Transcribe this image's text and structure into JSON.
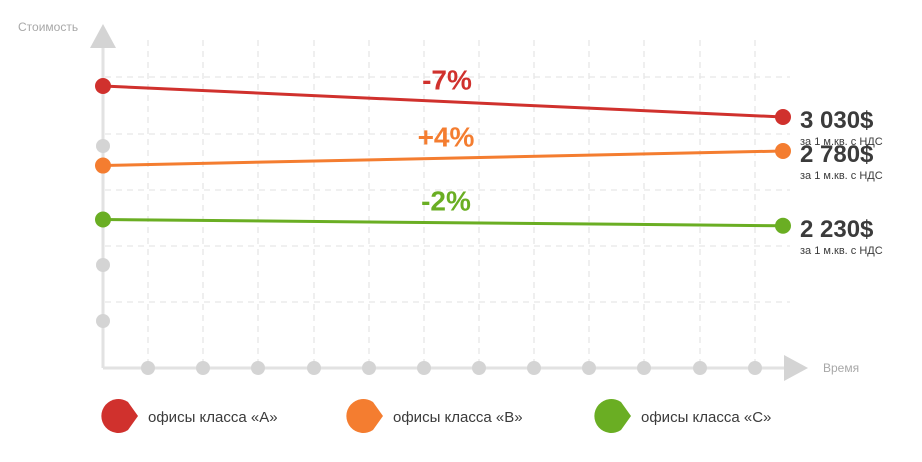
{
  "chart_data": {
    "type": "line",
    "ylabel": "Стоимость",
    "xlabel": "Время",
    "grid": true,
    "legend_position": "bottom",
    "series": [
      {
        "name": "офисы класса «А»",
        "color": "#d0312d",
        "start": 3258,
        "end": 3030,
        "change_label": "-7%",
        "end_value_label": "3 030$",
        "end_note": "за 1 м.кв. с НДС"
      },
      {
        "name": "офисы класса «В»",
        "color": "#f47d30",
        "start": 2673,
        "end": 2780,
        "change_label": "+4%",
        "end_value_label": "2 780$",
        "end_note": "за 1 м.кв. с НДС"
      },
      {
        "name": "офисы класса «С»",
        "color": "#6aae23",
        "start": 2276,
        "end": 2230,
        "change_label": "-2%",
        "end_value_label": "2 230$",
        "end_note": "за 1 м.кв. с НДС"
      }
    ]
  }
}
